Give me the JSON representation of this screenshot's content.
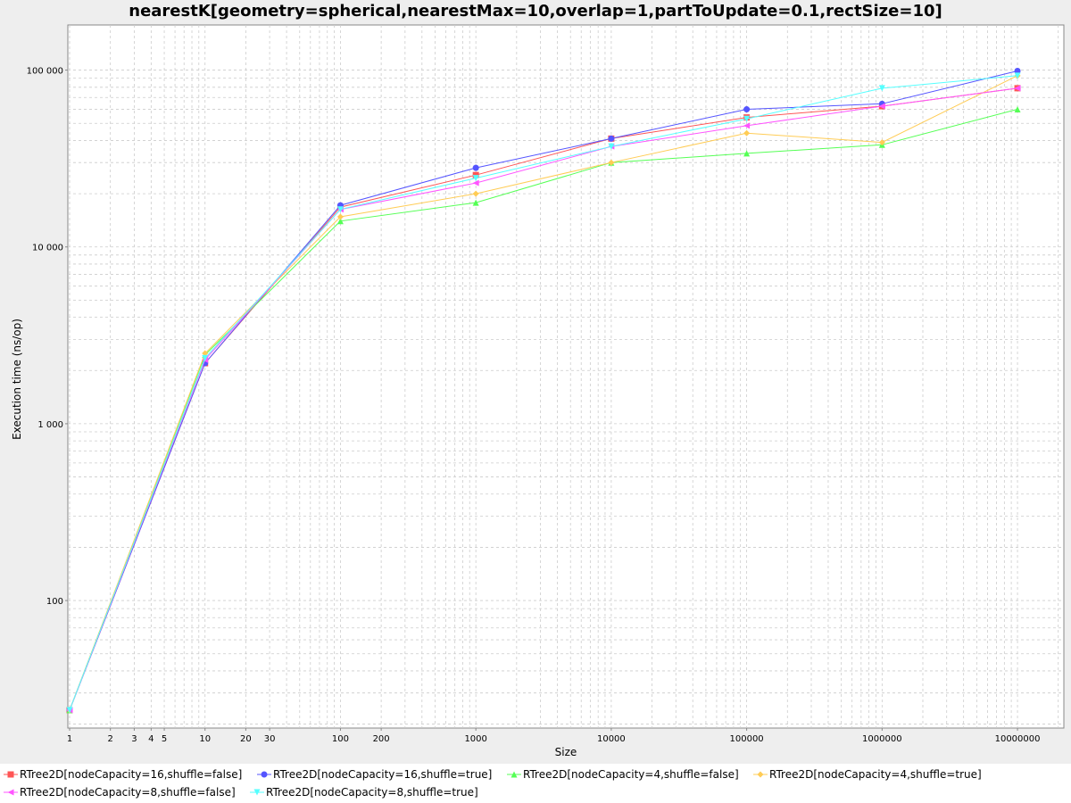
{
  "chart_data": {
    "type": "line",
    "title": "nearestK[geometry=spherical,nearestMax=10,overlap=1,partToUpdate=0.1,rectSize=10]",
    "xlabel": "Size",
    "ylabel": "Execution time (ns/op)",
    "x_scale": "log",
    "y_scale": "log",
    "xlim": [
      0.97,
      22000000
    ],
    "ylim": [
      19,
      180000
    ],
    "x_ticks": [
      {
        "value": 1,
        "label": "1"
      },
      {
        "value": 2,
        "label": "2"
      },
      {
        "value": 3,
        "label": "3"
      },
      {
        "value": 4,
        "label": "4"
      },
      {
        "value": 5,
        "label": "5"
      },
      {
        "value": 10,
        "label": "10"
      },
      {
        "value": 20,
        "label": "20"
      },
      {
        "value": 30,
        "label": "30"
      },
      {
        "value": 100,
        "label": "100"
      },
      {
        "value": 200,
        "label": "200"
      },
      {
        "value": 1000,
        "label": "1000"
      },
      {
        "value": 10000,
        "label": "10000"
      },
      {
        "value": 100000,
        "label": "100000"
      },
      {
        "value": 1000000,
        "label": "1000000"
      },
      {
        "value": 10000000,
        "label": "10000000"
      }
    ],
    "y_ticks": [
      {
        "value": 100,
        "label": "100"
      },
      {
        "value": 1000,
        "label": "1 000"
      },
      {
        "value": 10000,
        "label": "10 000"
      },
      {
        "value": 100000,
        "label": "100 000"
      }
    ],
    "grid": true,
    "legend_position": "bottom",
    "x": [
      1,
      10,
      100,
      1000,
      10000,
      100000,
      1000000,
      10000000
    ],
    "series": [
      {
        "name": "RTree2D[nodeCapacity=16,shuffle=false]",
        "color": "#ff5555",
        "marker": "square",
        "values": [
          24,
          2200,
          16800,
          25500,
          41000,
          54000,
          62500,
          79000
        ]
      },
      {
        "name": "RTree2D[nodeCapacity=16,shuffle=true]",
        "color": "#5555ff",
        "marker": "circle",
        "values": [
          24,
          2200,
          17200,
          28000,
          41000,
          60000,
          64500,
          99000
        ]
      },
      {
        "name": "RTree2D[nodeCapacity=4,shuffle=false]",
        "color": "#55ff55",
        "marker": "triangle-up",
        "values": [
          24,
          2450,
          14000,
          17800,
          30000,
          33800,
          37800,
          60000
        ]
      },
      {
        "name": "RTree2D[nodeCapacity=4,shuffle=true]",
        "color": "#ffcc55",
        "marker": "diamond",
        "values": [
          24,
          2500,
          14800,
          20000,
          30000,
          44000,
          39000,
          93000
        ]
      },
      {
        "name": "RTree2D[nodeCapacity=8,shuffle=false]",
        "color": "#ff55ff",
        "marker": "triangle-left",
        "values": [
          24,
          2300,
          16300,
          23000,
          37000,
          48500,
          62500,
          79000
        ]
      },
      {
        "name": "RTree2D[nodeCapacity=8,shuffle=true]",
        "color": "#55ffff",
        "marker": "triangle-down",
        "values": [
          24,
          2350,
          16300,
          24500,
          37000,
          53000,
          79000,
          93000
        ]
      }
    ]
  }
}
